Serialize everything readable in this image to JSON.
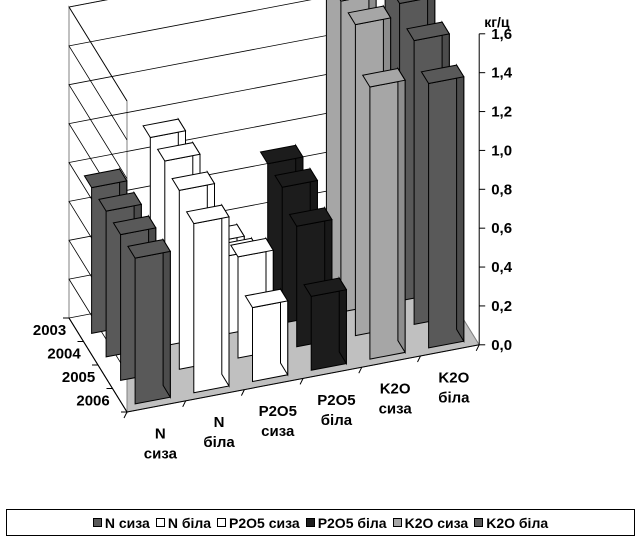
{
  "chart_data": {
    "type": "bar",
    "subtype": "3d-column",
    "unit": "кг/ц",
    "categories": [
      "N\nсиза",
      "N\nбіла",
      "P2O5\nсиза",
      "P2O5\nбіла",
      "K2O\nсиза",
      "K2O\nбіла"
    ],
    "years": [
      "2003",
      "2004",
      "2005",
      "2006"
    ],
    "zlim": [
      0,
      1.6
    ],
    "zticks": [
      "0,0",
      "0,2",
      "0,4",
      "0,6",
      "0,8",
      "1,0",
      "1,2",
      "1,4",
      "1,6"
    ],
    "values": [
      [
        0.75,
        0.75,
        0.75,
        0.75
      ],
      [
        0.95,
        0.95,
        0.92,
        0.87
      ],
      [
        0.35,
        0.4,
        0.52,
        0.38
      ],
      [
        0.7,
        0.7,
        0.62,
        0.38
      ],
      [
        1.6,
        1.6,
        1.6,
        1.4
      ],
      [
        1.6,
        1.53,
        1.46,
        1.36
      ]
    ],
    "series_colors": [
      "#595959",
      "#ffffff",
      "#ffffff",
      "#1c1c1c",
      "#a6a6a6",
      "#595959"
    ],
    "legend": [
      {
        "name": "N сиза",
        "color": "#595959"
      },
      {
        "name": "N біла",
        "color": "#ffffff"
      },
      {
        "name": "P2O5 сиза",
        "color": "#ffffff"
      },
      {
        "name": "P2O5 біла",
        "color": "#1c1c1c"
      },
      {
        "name": "K2O сиза",
        "color": "#a6a6a6"
      },
      {
        "name": "K2O біла",
        "color": "#595959"
      }
    ],
    "legend_position": "bottom",
    "grid": true
  }
}
